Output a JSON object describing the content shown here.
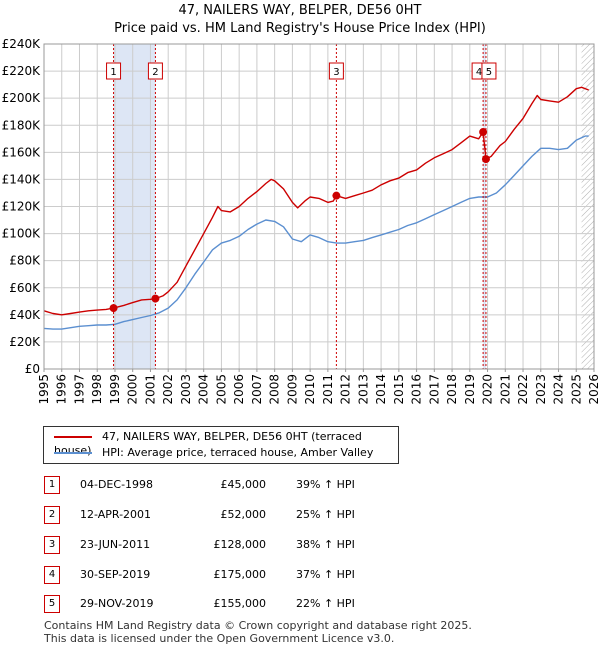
{
  "chart_data": {
    "type": "line",
    "title": "47, NAILERS WAY, BELPER, DE56 0HT",
    "subtitle": "Price paid vs. HM Land Registry's House Price Index (HPI)",
    "x_axis": {
      "min": 1995,
      "max": 2026,
      "ticks": [
        1995,
        1996,
        1997,
        1998,
        1999,
        2000,
        2001,
        2002,
        2003,
        2004,
        2005,
        2006,
        2007,
        2008,
        2009,
        2010,
        2011,
        2012,
        2013,
        2014,
        2015,
        2016,
        2017,
        2018,
        2019,
        2020,
        2021,
        2022,
        2023,
        2024,
        2025,
        2026
      ]
    },
    "y_axis": {
      "min": 0,
      "max": 240000,
      "ticks": [
        0,
        20000,
        40000,
        60000,
        80000,
        100000,
        120000,
        140000,
        160000,
        180000,
        200000,
        220000,
        240000
      ],
      "tick_labels": [
        "£0",
        "£20K",
        "£40K",
        "£60K",
        "£80K",
        "£100K",
        "£120K",
        "£140K",
        "£160K",
        "£180K",
        "£200K",
        "£220K",
        "£240K"
      ]
    },
    "grid": true,
    "series": [
      {
        "name": "47, NAILERS WAY, BELPER, DE56 0HT (terraced house)",
        "color": "#cc0000",
        "points": [
          [
            1995.0,
            43000
          ],
          [
            1995.5,
            41000
          ],
          [
            1996.0,
            40000
          ],
          [
            1996.5,
            41000
          ],
          [
            1997.0,
            42000
          ],
          [
            1997.5,
            43000
          ],
          [
            1998.0,
            43500
          ],
          [
            1998.5,
            44000
          ],
          [
            1998.92,
            45000
          ],
          [
            1999.5,
            47000
          ],
          [
            2000.0,
            49000
          ],
          [
            2000.5,
            51000
          ],
          [
            2001.0,
            51500
          ],
          [
            2001.28,
            52000
          ],
          [
            2001.7,
            54000
          ],
          [
            2002.0,
            57000
          ],
          [
            2002.5,
            64000
          ],
          [
            2003.0,
            76000
          ],
          [
            2003.5,
            88000
          ],
          [
            2004.0,
            100000
          ],
          [
            2004.5,
            112000
          ],
          [
            2004.8,
            120000
          ],
          [
            2005.0,
            117000
          ],
          [
            2005.5,
            116000
          ],
          [
            2006.0,
            120000
          ],
          [
            2006.5,
            126000
          ],
          [
            2007.0,
            131000
          ],
          [
            2007.5,
            137000
          ],
          [
            2007.8,
            140000
          ],
          [
            2008.0,
            139000
          ],
          [
            2008.5,
            133000
          ],
          [
            2009.0,
            123000
          ],
          [
            2009.3,
            119000
          ],
          [
            2009.7,
            124000
          ],
          [
            2010.0,
            127000
          ],
          [
            2010.5,
            126000
          ],
          [
            2011.0,
            123000
          ],
          [
            2011.3,
            124000
          ],
          [
            2011.48,
            128000
          ],
          [
            2012.0,
            126000
          ],
          [
            2012.5,
            128000
          ],
          [
            2013.0,
            130000
          ],
          [
            2013.5,
            132000
          ],
          [
            2014.0,
            136000
          ],
          [
            2014.5,
            139000
          ],
          [
            2015.0,
            141000
          ],
          [
            2015.5,
            145000
          ],
          [
            2016.0,
            147000
          ],
          [
            2016.5,
            152000
          ],
          [
            2017.0,
            156000
          ],
          [
            2017.5,
            159000
          ],
          [
            2018.0,
            162000
          ],
          [
            2018.5,
            167000
          ],
          [
            2019.0,
            172000
          ],
          [
            2019.5,
            170000
          ],
          [
            2019.75,
            175000
          ],
          [
            2019.91,
            155000
          ],
          [
            2020.2,
            157000
          ],
          [
            2020.7,
            165000
          ],
          [
            2021.0,
            168000
          ],
          [
            2021.5,
            177000
          ],
          [
            2022.0,
            185000
          ],
          [
            2022.5,
            196000
          ],
          [
            2022.8,
            202000
          ],
          [
            2023.0,
            199000
          ],
          [
            2023.5,
            198000
          ],
          [
            2024.0,
            197000
          ],
          [
            2024.5,
            201000
          ],
          [
            2025.0,
            207000
          ],
          [
            2025.3,
            208000
          ],
          [
            2025.7,
            206000
          ]
        ]
      },
      {
        "name": "HPI: Average price, terraced house, Amber Valley",
        "color": "#5b8fd0",
        "points": [
          [
            1995.0,
            30000
          ],
          [
            1995.5,
            29500
          ],
          [
            1996.0,
            29500
          ],
          [
            1996.5,
            30500
          ],
          [
            1997.0,
            31500
          ],
          [
            1997.5,
            32000
          ],
          [
            1998.0,
            32500
          ],
          [
            1998.5,
            32500
          ],
          [
            1999.0,
            33000
          ],
          [
            1999.5,
            35000
          ],
          [
            2000.0,
            36500
          ],
          [
            2000.5,
            38000
          ],
          [
            2001.0,
            39500
          ],
          [
            2001.5,
            41500
          ],
          [
            2002.0,
            45000
          ],
          [
            2002.5,
            51000
          ],
          [
            2003.0,
            60000
          ],
          [
            2003.5,
            70000
          ],
          [
            2004.0,
            79000
          ],
          [
            2004.5,
            88000
          ],
          [
            2005.0,
            93000
          ],
          [
            2005.5,
            95000
          ],
          [
            2006.0,
            98000
          ],
          [
            2006.5,
            103000
          ],
          [
            2007.0,
            107000
          ],
          [
            2007.5,
            110000
          ],
          [
            2008.0,
            109000
          ],
          [
            2008.5,
            105000
          ],
          [
            2009.0,
            96000
          ],
          [
            2009.5,
            94000
          ],
          [
            2010.0,
            99000
          ],
          [
            2010.5,
            97000
          ],
          [
            2011.0,
            94000
          ],
          [
            2011.5,
            93000
          ],
          [
            2012.0,
            93000
          ],
          [
            2012.5,
            94000
          ],
          [
            2013.0,
            95000
          ],
          [
            2013.5,
            97000
          ],
          [
            2014.0,
            99000
          ],
          [
            2014.5,
            101000
          ],
          [
            2015.0,
            103000
          ],
          [
            2015.5,
            106000
          ],
          [
            2016.0,
            108000
          ],
          [
            2016.5,
            111000
          ],
          [
            2017.0,
            114000
          ],
          [
            2017.5,
            117000
          ],
          [
            2018.0,
            120000
          ],
          [
            2018.5,
            123000
          ],
          [
            2019.0,
            126000
          ],
          [
            2019.5,
            127000
          ],
          [
            2020.0,
            127000
          ],
          [
            2020.5,
            130000
          ],
          [
            2021.0,
            136000
          ],
          [
            2021.5,
            143000
          ],
          [
            2022.0,
            150000
          ],
          [
            2022.5,
            157000
          ],
          [
            2023.0,
            163000
          ],
          [
            2023.5,
            163000
          ],
          [
            2024.0,
            162000
          ],
          [
            2024.5,
            163000
          ],
          [
            2025.0,
            169000
          ],
          [
            2025.5,
            172000
          ],
          [
            2025.7,
            172000
          ]
        ]
      }
    ],
    "sales": [
      {
        "id": "1",
        "x": 1998.92,
        "y": 45000
      },
      {
        "id": "2",
        "x": 2001.28,
        "y": 52000
      },
      {
        "id": "3",
        "x": 2011.48,
        "y": 128000
      },
      {
        "id": "4",
        "x": 2019.75,
        "y": 175000
      },
      {
        "id": "5",
        "x": 2019.91,
        "y": 155000
      }
    ],
    "highlight_spans": [
      [
        1998.92,
        2001.28
      ],
      [
        2019.75,
        2019.91
      ]
    ],
    "future_hatch_from": 2025.3,
    "chart_badges": [
      "1",
      "2",
      "3",
      "4",
      "5"
    ]
  },
  "legend": {
    "items": [
      {
        "label": "47, NAILERS WAY, BELPER, DE56 0HT (terraced house)",
        "color": "#cc0000"
      },
      {
        "label": "HPI: Average price, terraced house, Amber Valley",
        "color": "#5b8fd0"
      }
    ]
  },
  "transactions": [
    {
      "num": "1",
      "date": "04-DEC-1998",
      "price": "£45,000",
      "hpi": "39% ↑ HPI"
    },
    {
      "num": "2",
      "date": "12-APR-2001",
      "price": "£52,000",
      "hpi": "25% ↑ HPI"
    },
    {
      "num": "3",
      "date": "23-JUN-2011",
      "price": "£128,000",
      "hpi": "38% ↑ HPI"
    },
    {
      "num": "4",
      "date": "30-SEP-2019",
      "price": "£175,000",
      "hpi": "37% ↑ HPI"
    },
    {
      "num": "5",
      "date": "29-NOV-2019",
      "price": "£155,000",
      "hpi": "22% ↑ HPI"
    }
  ],
  "footer": {
    "line1": "Contains HM Land Registry data © Crown copyright and database right 2025.",
    "line2": "This data is licensed under the Open Government Licence v3.0."
  },
  "colors": {
    "red": "#cc0000",
    "blue": "#5b8fd0",
    "highlight": "#dde6f5",
    "grid": "#cccccc"
  }
}
